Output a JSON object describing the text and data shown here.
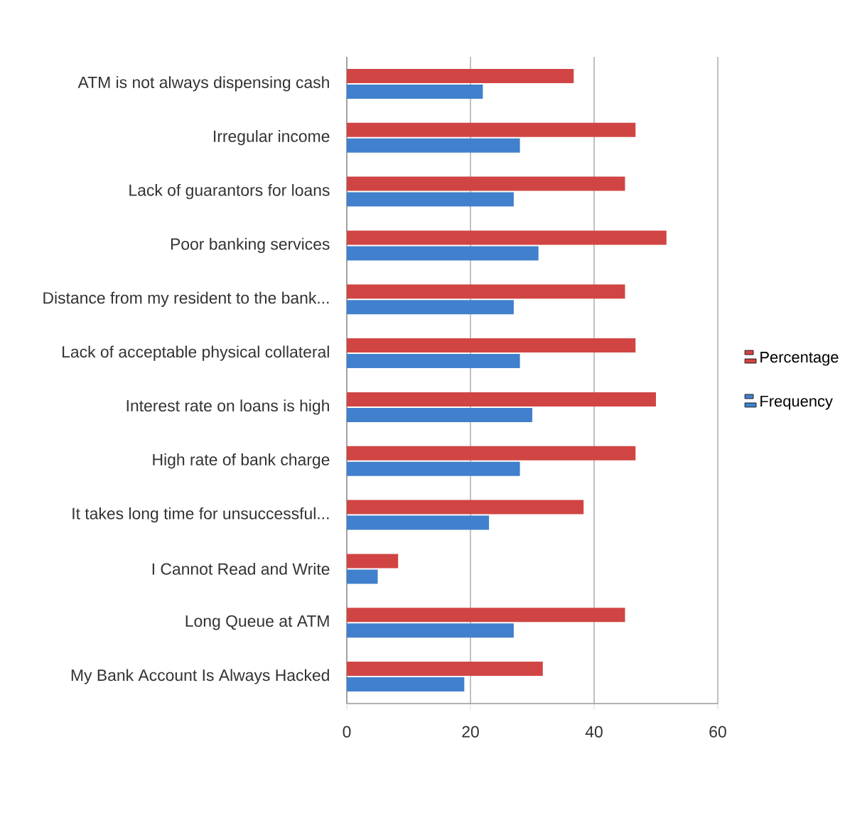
{
  "chart_data": {
    "type": "bar",
    "orientation": "horizontal",
    "categories": [
      "ATM is not always dispensing cash",
      "Irregular income",
      "Lack of guarantors for loans",
      "Poor banking services",
      "Distance from my resident to the bank...",
      "Lack of acceptable physical collateral",
      "Interest rate on loans is high",
      "High rate of bank charge",
      "It takes long time for unsuccessful...",
      "I Cannot Read and Write",
      "Long Queue at ATM",
      "My Bank Account Is Always Hacked"
    ],
    "series": [
      {
        "name": "Percentage",
        "color": "#d04543",
        "values": [
          36.7,
          46.7,
          45.0,
          51.7,
          45.0,
          46.7,
          50.0,
          46.7,
          38.3,
          8.3,
          45.0,
          31.7
        ]
      },
      {
        "name": "Frequency",
        "color": "#4180cc",
        "values": [
          22,
          28,
          27,
          31,
          27,
          28,
          30,
          28,
          23,
          5,
          27,
          19
        ]
      }
    ],
    "xlim": [
      0,
      60
    ],
    "xticks": [
      0,
      20,
      40,
      60
    ],
    "grid": "x",
    "legend": "right"
  }
}
